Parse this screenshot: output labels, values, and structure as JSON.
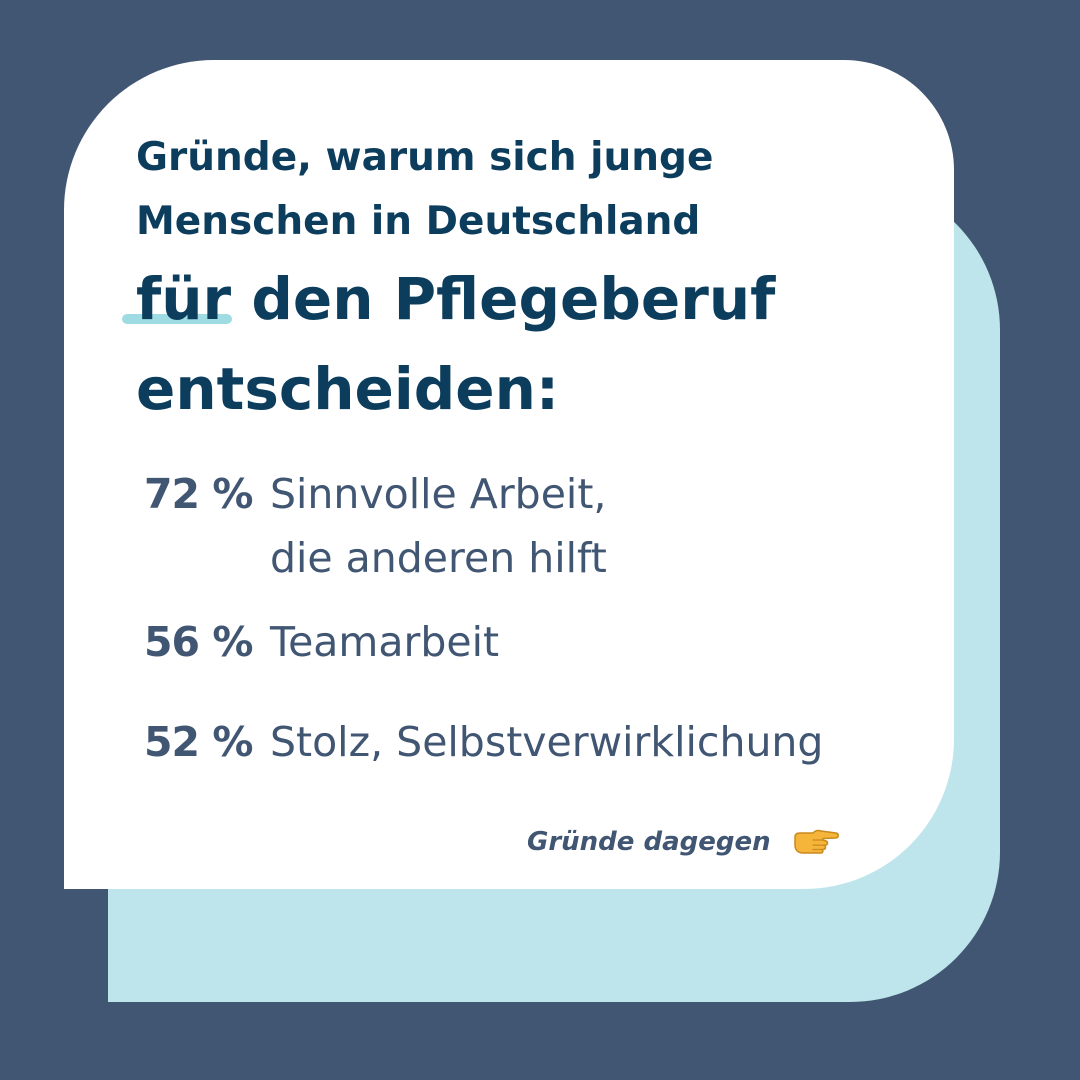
{
  "colors": {
    "background": "#415673",
    "card_back": "#bde5eb",
    "card_front": "#ffffff",
    "heading": "#0c3d5c",
    "text": "#415673",
    "highlight": "#9fdbe3"
  },
  "headline": {
    "line1": "Gründe, warum sich junge",
    "line2": "Menschen in Deutschland",
    "line3_highlight": "für",
    "line3_rest": " den Pflegeberuf",
    "line4": "entscheiden:"
  },
  "stats": [
    {
      "percent": "72 %",
      "label_line1": "Sinnvolle Arbeit,",
      "label_line2": "die anderen hilft"
    },
    {
      "percent": "56 %",
      "label_line1": "Teamarbeit"
    },
    {
      "percent": "52 %",
      "label_line1": "Stolz, Selbstverwirklichung"
    }
  ],
  "footer": {
    "link_text": "Gründe dagegen",
    "icon": "pointing-right-hand-icon"
  }
}
